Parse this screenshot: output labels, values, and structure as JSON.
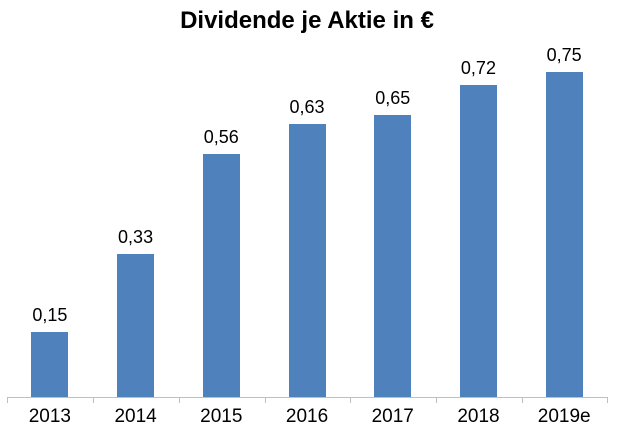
{
  "chart_data": {
    "type": "bar",
    "title": "Dividende je Aktie in €",
    "categories": [
      "2013",
      "2014",
      "2015",
      "2016",
      "2017",
      "2018",
      "2019e"
    ],
    "values": [
      0.15,
      0.33,
      0.56,
      0.63,
      0.65,
      0.72,
      0.75
    ],
    "value_labels": [
      "0,15",
      "0,33",
      "0,56",
      "0,63",
      "0,65",
      "0,72",
      "0,75"
    ],
    "xlabel": "",
    "ylabel": "",
    "ylim": [
      0,
      0.8
    ],
    "grid": false,
    "legend": "none",
    "bar_color": "#4F81BD",
    "axis_line_color": "#BFBFBF",
    "text_color": "#000000",
    "background_color": "#FFFFFF"
  }
}
